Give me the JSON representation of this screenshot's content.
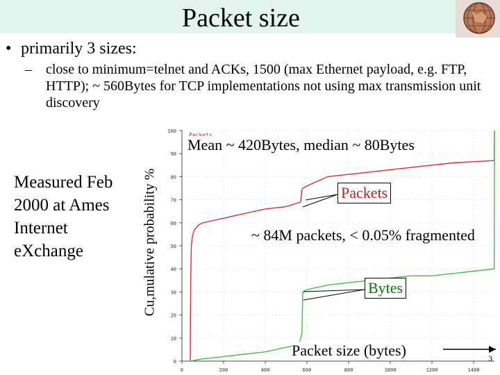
{
  "slide": {
    "title": "Packet size",
    "bullet": "primarily 3 sizes:",
    "bullet_marker": "•",
    "subbullet_marker": "–",
    "subbullet": "close to minimum=telnet and ACKs, 1500 (max Ethernet payload, e.g. FTP, HTTP); ~ 560Bytes for TCP implementations not using max transmission unit discovery",
    "sidenote": "Measured Feb 2000 at Ames Internet eXchange",
    "page_number": "3",
    "logo_icon": "globe-logo-icon"
  },
  "chart_data": {
    "type": "line",
    "title": "",
    "inner_label": "Packets",
    "ylabel": "Cu,mulative probability %",
    "xlabel": "Packet size (bytes)",
    "xlim": [
      0,
      1500
    ],
    "ylim": [
      0,
      100
    ],
    "x_ticks": [
      "0",
      "200",
      "400",
      "600",
      "800",
      "1000",
      "1200",
      "1400"
    ],
    "y_ticks": [
      "0",
      "10",
      "20",
      "30",
      "40",
      "50",
      "60",
      "70",
      "80",
      "90",
      "100"
    ],
    "annotations": {
      "stats": "Mean ~ 420Bytes, median ~ 80Bytes",
      "packets_label": "Packets",
      "count": "~ 84M packets, < 0.05% fragmented",
      "bytes_label": "Bytes"
    },
    "series": [
      {
        "name": "Packets",
        "color": "#d03030",
        "points": [
          [
            40,
            0
          ],
          [
            40,
            8
          ],
          [
            41,
            20
          ],
          [
            42,
            33
          ],
          [
            45,
            50
          ],
          [
            50,
            54
          ],
          [
            60,
            57
          ],
          [
            70,
            58
          ],
          [
            80,
            59
          ],
          [
            100,
            60
          ],
          [
            150,
            61
          ],
          [
            200,
            62
          ],
          [
            250,
            63
          ],
          [
            300,
            64
          ],
          [
            350,
            65
          ],
          [
            400,
            66
          ],
          [
            500,
            67
          ],
          [
            570,
            69
          ],
          [
            575,
            74
          ],
          [
            580,
            75
          ],
          [
            600,
            76
          ],
          [
            700,
            80
          ],
          [
            800,
            81
          ],
          [
            900,
            82
          ],
          [
            1000,
            83
          ],
          [
            1100,
            84
          ],
          [
            1200,
            85
          ],
          [
            1300,
            86
          ],
          [
            1400,
            86.5
          ],
          [
            1499,
            87
          ],
          [
            1500,
            100
          ]
        ]
      },
      {
        "name": "Bytes",
        "color": "#40c040",
        "points": [
          [
            40,
            0
          ],
          [
            100,
            1
          ],
          [
            200,
            2
          ],
          [
            300,
            3
          ],
          [
            400,
            4
          ],
          [
            500,
            6
          ],
          [
            560,
            7
          ],
          [
            570,
            10
          ],
          [
            576,
            12
          ],
          [
            580,
            30
          ],
          [
            600,
            31
          ],
          [
            700,
            33
          ],
          [
            800,
            34
          ],
          [
            900,
            35
          ],
          [
            1000,
            36
          ],
          [
            1100,
            37
          ],
          [
            1200,
            37
          ],
          [
            1300,
            38
          ],
          [
            1400,
            39
          ],
          [
            1499,
            40
          ],
          [
            1500,
            100
          ]
        ]
      }
    ]
  }
}
